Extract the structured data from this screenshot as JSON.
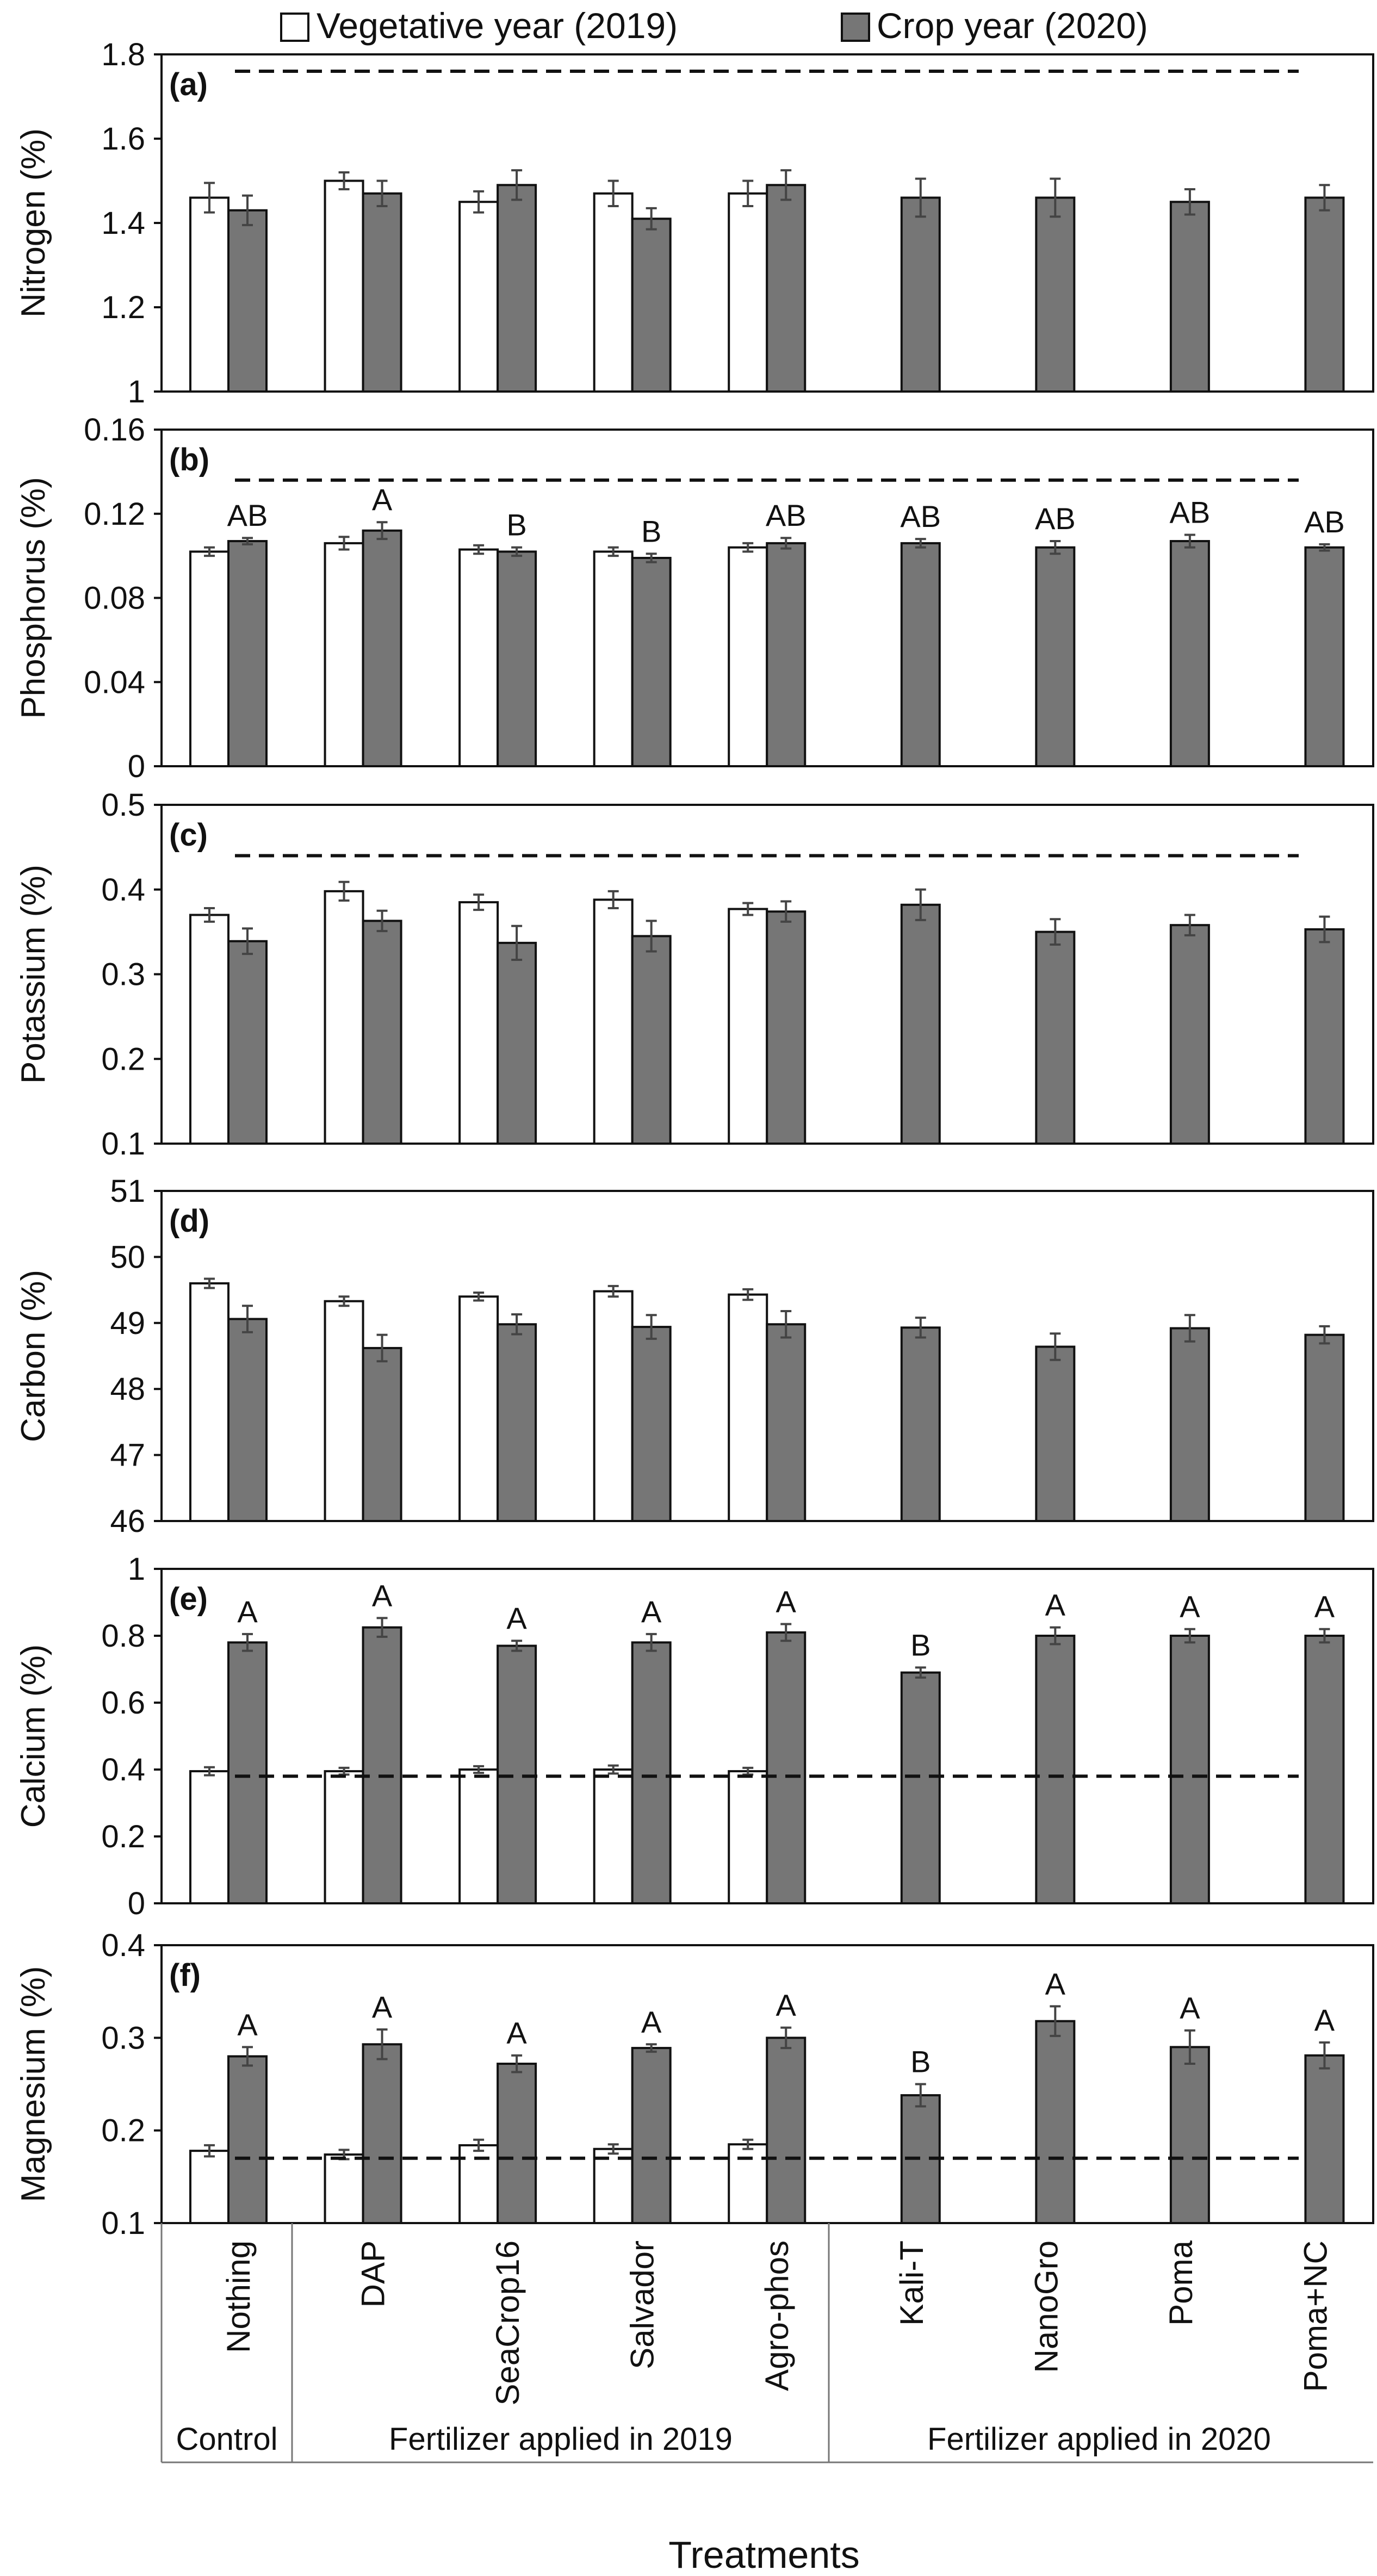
{
  "legend": {
    "vegetative_label": "Vegetative year (2019)",
    "crop_label": "Crop year (2020)"
  },
  "colors": {
    "vegetative_fill": "#ffffff",
    "crop_fill": "#767676",
    "bar_stroke": "#111111",
    "error_bar": "#444444",
    "axis": "#111111",
    "dashed_line": "#111111"
  },
  "x_axis": {
    "title": "Treatments",
    "categories": [
      "Nothing",
      "DAP",
      "SeaCrop16",
      "Salvador",
      "Agro-phos",
      "Kali-T",
      "NanoGro",
      "Poma",
      "Poma+NC"
    ],
    "groups": [
      {
        "label": "Control",
        "first": 0,
        "last": 0
      },
      {
        "label": "Fertilizer applied in 2019",
        "first": 1,
        "last": 4
      },
      {
        "label": "Fertilizer applied in 2020",
        "first": 5,
        "last": 8
      }
    ]
  },
  "chart_data": [
    {
      "type": "bar",
      "panel": "(a)",
      "ylabel": "Nitrogen (%)",
      "ylim": [
        1,
        1.8
      ],
      "yticks": [
        1,
        1.2,
        1.4,
        1.6,
        1.8
      ],
      "tick_labels": [
        "1",
        "1.2",
        "1.4",
        "1.6",
        "1.8"
      ],
      "reference_line": 1.76,
      "categories": [
        "Nothing",
        "DAP",
        "SeaCrop16",
        "Salvador",
        "Agro-phos",
        "Kali-T",
        "NanoGro",
        "Poma",
        "Poma+NC"
      ],
      "series": [
        {
          "name": "Vegetative year (2019)",
          "values": [
            1.46,
            1.5,
            1.45,
            1.47,
            1.47,
            null,
            null,
            null,
            null
          ],
          "errors": [
            0.035,
            0.02,
            0.025,
            0.03,
            0.03,
            null,
            null,
            null,
            null
          ]
        },
        {
          "name": "Crop year (2020)",
          "values": [
            1.43,
            1.47,
            1.49,
            1.41,
            1.49,
            1.46,
            1.46,
            1.45,
            1.46
          ],
          "errors": [
            0.035,
            0.03,
            0.035,
            0.025,
            0.035,
            0.045,
            0.045,
            0.03,
            0.03
          ]
        }
      ],
      "letters": [
        "",
        "",
        "",
        "",
        "",
        "",
        "",
        "",
        ""
      ]
    },
    {
      "type": "bar",
      "panel": "(b)",
      "ylabel": "Phosphorus (%)",
      "ylim": [
        0,
        0.16
      ],
      "yticks": [
        0,
        0.04,
        0.08,
        0.12,
        0.16
      ],
      "tick_labels": [
        "0",
        "0.04",
        "0.08",
        "0.12",
        "0.16"
      ],
      "reference_line": 0.136,
      "categories": [
        "Nothing",
        "DAP",
        "SeaCrop16",
        "Salvador",
        "Agro-phos",
        "Kali-T",
        "NanoGro",
        "Poma",
        "Poma+NC"
      ],
      "series": [
        {
          "name": "Vegetative year (2019)",
          "values": [
            0.102,
            0.106,
            0.103,
            0.102,
            0.104,
            null,
            null,
            null,
            null
          ],
          "errors": [
            0.002,
            0.003,
            0.002,
            0.002,
            0.002,
            null,
            null,
            null,
            null
          ]
        },
        {
          "name": "Crop year (2020)",
          "values": [
            0.107,
            0.112,
            0.102,
            0.099,
            0.106,
            0.106,
            0.104,
            0.107,
            0.104
          ],
          "errors": [
            0.0015,
            0.004,
            0.002,
            0.002,
            0.0025,
            0.002,
            0.003,
            0.003,
            0.0015
          ]
        }
      ],
      "letters": [
        "AB",
        "A",
        "B",
        "B",
        "AB",
        "AB",
        "AB",
        "AB",
        "AB"
      ]
    },
    {
      "type": "bar",
      "panel": "(c)",
      "ylabel": "Potassium (%)",
      "ylim": [
        0.1,
        0.5
      ],
      "yticks": [
        0.1,
        0.2,
        0.3,
        0.4,
        0.5
      ],
      "tick_labels": [
        "0.1",
        "0.2",
        "0.3",
        "0.4",
        "0.5"
      ],
      "reference_line": 0.44,
      "categories": [
        "Nothing",
        "DAP",
        "SeaCrop16",
        "Salvador",
        "Agro-phos",
        "Kali-T",
        "NanoGro",
        "Poma",
        "Poma+NC"
      ],
      "series": [
        {
          "name": "Vegetative year (2019)",
          "values": [
            0.37,
            0.398,
            0.385,
            0.388,
            0.377,
            null,
            null,
            null,
            null
          ],
          "errors": [
            0.008,
            0.011,
            0.009,
            0.01,
            0.007,
            null,
            null,
            null,
            null
          ]
        },
        {
          "name": "Crop year (2020)",
          "values": [
            0.339,
            0.363,
            0.337,
            0.345,
            0.374,
            0.382,
            0.35,
            0.358,
            0.353
          ],
          "errors": [
            0.015,
            0.012,
            0.02,
            0.018,
            0.012,
            0.018,
            0.015,
            0.012,
            0.015
          ]
        }
      ],
      "letters": [
        "",
        "",
        "",
        "",
        "",
        "",
        "",
        "",
        ""
      ]
    },
    {
      "type": "bar",
      "panel": "(d)",
      "ylabel": "Carbon (%)",
      "ylim": [
        46,
        51
      ],
      "yticks": [
        46,
        47,
        48,
        49,
        50,
        51
      ],
      "tick_labels": [
        "46",
        "47",
        "48",
        "49",
        "50",
        "51"
      ],
      "reference_line": null,
      "categories": [
        "Nothing",
        "DAP",
        "SeaCrop16",
        "Salvador",
        "Agro-phos",
        "Kali-T",
        "NanoGro",
        "Poma",
        "Poma+NC"
      ],
      "series": [
        {
          "name": "Vegetative year (2019)",
          "values": [
            49.6,
            49.33,
            49.4,
            49.48,
            49.43,
            null,
            null,
            null,
            null
          ],
          "errors": [
            0.07,
            0.07,
            0.06,
            0.08,
            0.08,
            null,
            null,
            null,
            null
          ]
        },
        {
          "name": "Crop year (2020)",
          "values": [
            49.06,
            48.62,
            48.98,
            48.94,
            48.98,
            48.93,
            48.64,
            48.92,
            48.82
          ],
          "errors": [
            0.2,
            0.2,
            0.15,
            0.18,
            0.2,
            0.15,
            0.2,
            0.2,
            0.13
          ]
        }
      ],
      "letters": [
        "",
        "",
        "",
        "",
        "",
        "",
        "",
        "",
        ""
      ]
    },
    {
      "type": "bar",
      "panel": "(e)",
      "ylabel": "Calcium (%)",
      "ylim": [
        0,
        1
      ],
      "yticks": [
        0,
        0.2,
        0.4,
        0.6,
        0.8,
        1
      ],
      "tick_labels": [
        "0",
        "0.2",
        "0.4",
        "0.6",
        "0.8",
        "1"
      ],
      "reference_line": 0.38,
      "categories": [
        "Nothing",
        "DAP",
        "SeaCrop16",
        "Salvador",
        "Agro-phos",
        "Kali-T",
        "NanoGro",
        "Poma",
        "Poma+NC"
      ],
      "series": [
        {
          "name": "Vegetative year (2019)",
          "values": [
            0.395,
            0.395,
            0.4,
            0.4,
            0.395,
            null,
            null,
            null,
            null
          ],
          "errors": [
            0.012,
            0.01,
            0.01,
            0.012,
            0.01,
            null,
            null,
            null,
            null
          ]
        },
        {
          "name": "Crop year (2020)",
          "values": [
            0.78,
            0.825,
            0.77,
            0.78,
            0.81,
            0.69,
            0.8,
            0.8,
            0.8
          ],
          "errors": [
            0.025,
            0.028,
            0.015,
            0.025,
            0.025,
            0.015,
            0.025,
            0.02,
            0.02
          ]
        }
      ],
      "letters": [
        "A",
        "A",
        "A",
        "A",
        "A",
        "B",
        "A",
        "A",
        "A"
      ]
    },
    {
      "type": "bar",
      "panel": "(f)",
      "ylabel": "Magnesium (%)",
      "ylim": [
        0.1,
        0.4
      ],
      "yticks": [
        0.1,
        0.2,
        0.3,
        0.4
      ],
      "tick_labels": [
        "0.1",
        "0.2",
        "0.3",
        "0.4"
      ],
      "reference_line": 0.17,
      "categories": [
        "Nothing",
        "DAP",
        "SeaCrop16",
        "Salvador",
        "Agro-phos",
        "Kali-T",
        "NanoGro",
        "Poma",
        "Poma+NC"
      ],
      "series": [
        {
          "name": "Vegetative year (2019)",
          "values": [
            0.178,
            0.174,
            0.184,
            0.18,
            0.185,
            null,
            null,
            null,
            null
          ],
          "errors": [
            0.006,
            0.005,
            0.006,
            0.005,
            0.005,
            null,
            null,
            null,
            null
          ]
        },
        {
          "name": "Crop year (2020)",
          "values": [
            0.28,
            0.293,
            0.272,
            0.289,
            0.3,
            0.238,
            0.318,
            0.29,
            0.281
          ],
          "errors": [
            0.01,
            0.016,
            0.009,
            0.004,
            0.011,
            0.012,
            0.016,
            0.018,
            0.014
          ]
        }
      ],
      "letters": [
        "A",
        "A",
        "A",
        "A",
        "A",
        "B",
        "A",
        "A",
        "A"
      ]
    }
  ]
}
